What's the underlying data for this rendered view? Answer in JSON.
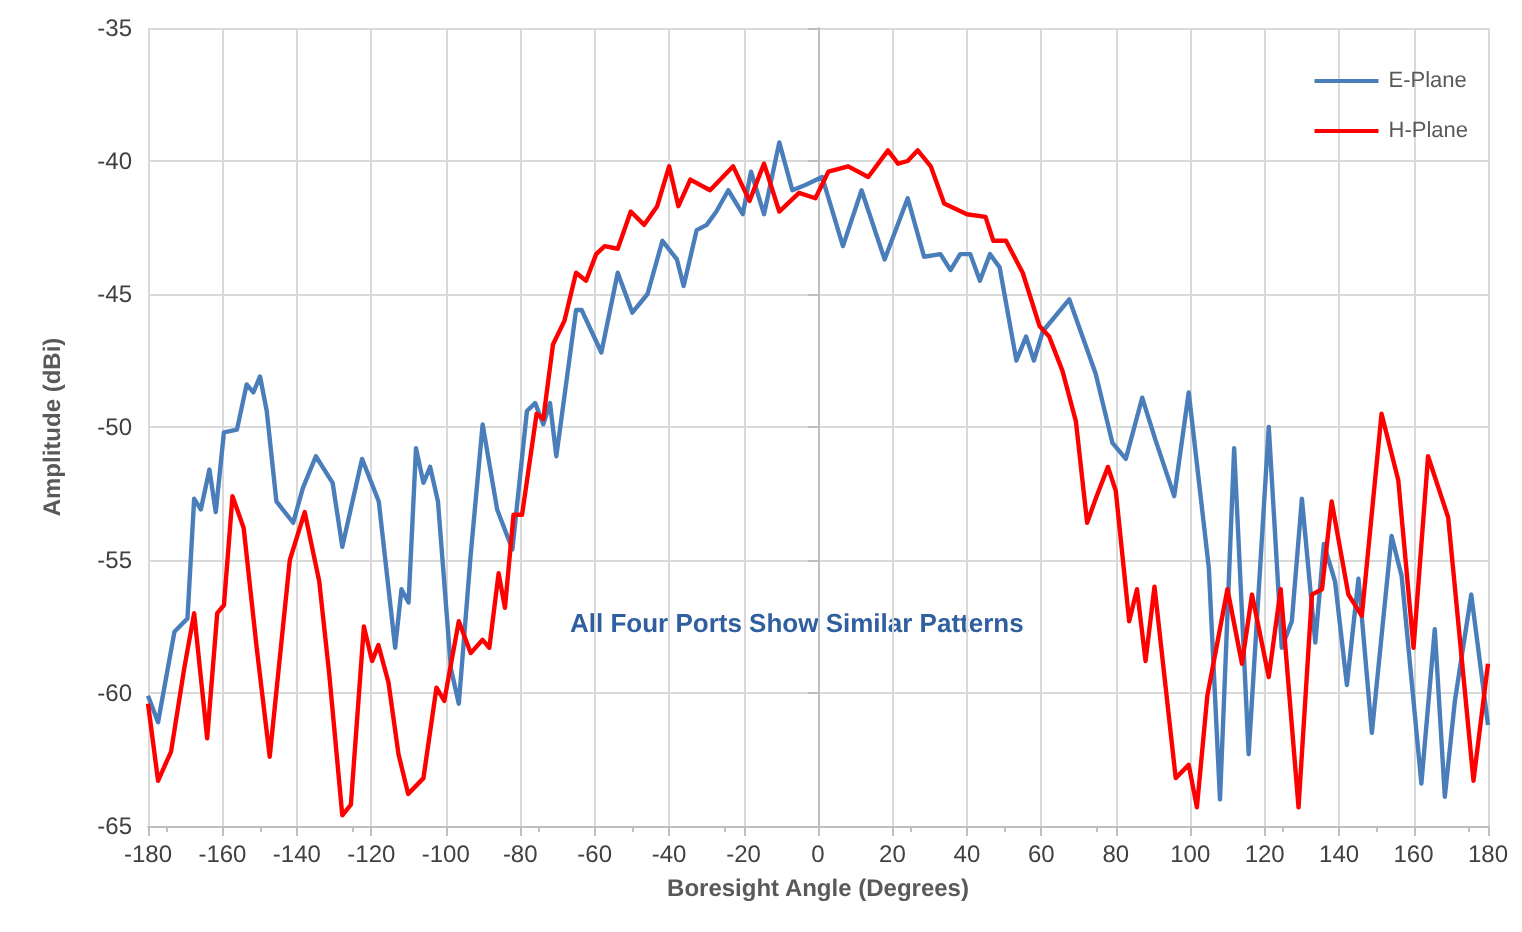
{
  "chart_data": {
    "type": "line",
    "xlabel": "Boresight Angle (Degrees)",
    "ylabel": "Amplitude (dBi)",
    "annotations": [
      "All Four Ports Show Similar Patterns"
    ],
    "xlim": [
      -180,
      180
    ],
    "xticks": [
      -180,
      -160,
      -140,
      -120,
      -100,
      -80,
      -60,
      -40,
      -20,
      0,
      20,
      40,
      60,
      80,
      100,
      120,
      140,
      160,
      180
    ],
    "ylim": [
      -65,
      -35
    ],
    "yticks": [
      -65,
      -60,
      -55,
      -50,
      -45,
      -40,
      -35
    ],
    "grid": true,
    "legend": "top right",
    "marker": "none",
    "line_style": "solid",
    "series": [
      {
        "name": "E-Plane",
        "color": "#4a7ebb",
        "x": [
          -180,
          -177.3,
          -172.9,
          -169.4,
          -167.6,
          -165.8,
          -163.5,
          -161.8,
          -159.6,
          -156.1,
          -153.5,
          -151.7,
          -149.9,
          -148.1,
          -145.5,
          -141,
          -138.4,
          -134.9,
          -130.4,
          -127.8,
          -122.5,
          -118,
          -113.6,
          -111.9,
          -110,
          -108,
          -106,
          -104.2,
          -102.1,
          -98.6,
          -96.5,
          -93.3,
          -90.1,
          -86.2,
          -82.1,
          -78.2,
          -76,
          -73.8,
          -72,
          -70.3,
          -65,
          -63.5,
          -58.2,
          -53.8,
          -49.9,
          -45.8,
          -41.8,
          -37.9,
          -36.1,
          -32.6,
          -29.9,
          -27.3,
          -24.1,
          -20.2,
          -18,
          -14.5,
          -10.4,
          -6.9,
          -3.4,
          1.1,
          6.7,
          11.7,
          17.9,
          24.1,
          28.5,
          32.9,
          35.6,
          38.2,
          40.9,
          43.5,
          46.2,
          48.8,
          53.3,
          55.9,
          58,
          60.4,
          67.5,
          74.6,
          79.1,
          82.7,
          87.1,
          90.7,
          95.7,
          99.6,
          105,
          108,
          111.8,
          115.7,
          121.1,
          124.6,
          127.3,
          130,
          133.6,
          135.9,
          138.9,
          142.1,
          145.2,
          148.8,
          154.1,
          156.8,
          162.1,
          165.7,
          168.4,
          171.1,
          175.5,
          180
        ],
        "values": [
          -60.1,
          -61.1,
          -57.7,
          -57.2,
          -52.7,
          -53.1,
          -51.6,
          -53.2,
          -50.2,
          -50.1,
          -48.4,
          -48.7,
          -48.1,
          -49.4,
          -52.8,
          -53.6,
          -52.3,
          -51.1,
          -52.1,
          -54.5,
          -51.2,
          -52.8,
          -58.3,
          -56.1,
          -56.6,
          -50.8,
          -52.1,
          -51.5,
          -52.8,
          -59.1,
          -60.4,
          -54.8,
          -49.9,
          -53.1,
          -54.6,
          -49.4,
          -49.1,
          -49.9,
          -49.1,
          -51.1,
          -45.6,
          -45.6,
          -47.2,
          -44.2,
          -45.7,
          -45,
          -43,
          -43.7,
          -44.7,
          -42.6,
          -42.4,
          -41.9,
          -41.1,
          -42,
          -40.4,
          -42,
          -39.3,
          -41.1,
          -40.9,
          -40.6,
          -43.2,
          -41.1,
          -43.7,
          -41.4,
          -43.6,
          -43.5,
          -44.1,
          -43.5,
          -43.5,
          -44.5,
          -43.5,
          -44,
          -47.5,
          -46.6,
          -47.5,
          -46.4,
          -45.2,
          -48,
          -50.6,
          -51.2,
          -48.9,
          -50.5,
          -52.6,
          -48.7,
          -55.3,
          -64,
          -50.8,
          -62.3,
          -50,
          -58.3,
          -57.3,
          -52.7,
          -58.1,
          -54.4,
          -55.8,
          -59.7,
          -55.7,
          -61.5,
          -54.1,
          -55.6,
          -63.4,
          -57.6,
          -63.9,
          -60.3,
          -56.3,
          -61.2
        ]
      },
      {
        "name": "H-Plane",
        "color": "#ff0000",
        "x": [
          -180,
          -177.3,
          -173.8,
          -170.3,
          -167.6,
          -164.1,
          -161.4,
          -159.6,
          -157.3,
          -154.3,
          -150.8,
          -147.3,
          -141.9,
          -137.9,
          -134,
          -131.3,
          -127.8,
          -125.5,
          -122,
          -119.8,
          -118.1,
          -115.4,
          -112.7,
          -110.1,
          -106,
          -102.5,
          -100.4,
          -96.5,
          -93.3,
          -90.1,
          -88.3,
          -85.8,
          -84.1,
          -81.8,
          -79.5,
          -75.6,
          -73.8,
          -71.2,
          -68.1,
          -65,
          -62.3,
          -59.6,
          -57.3,
          -53.8,
          -50.3,
          -46.7,
          -43.2,
          -40,
          -37.5,
          -34.3,
          -29,
          -22.8,
          -18.4,
          -14.5,
          -10.4,
          -5.1,
          -0.7,
          2.8,
          8.1,
          13.5,
          18.8,
          21.5,
          24.1,
          26.8,
          30.3,
          33.9,
          40,
          45,
          47.1,
          50.5,
          55,
          59.5,
          62.1,
          65.7,
          69.3,
          72.3,
          74.6,
          77.9,
          80,
          83.6,
          85.7,
          88,
          90.4,
          96.1,
          99.6,
          101.8,
          104.6,
          110,
          113.9,
          116.6,
          121.1,
          124.3,
          129.1,
          132.7,
          135.4,
          138,
          142.5,
          146.1,
          151.4,
          155.9,
          160,
          163.9,
          169.3,
          176.1,
          180
        ],
        "values": [
          -60.4,
          -63.3,
          -62.2,
          -59.1,
          -57,
          -61.7,
          -57,
          -56.7,
          -52.6,
          -53.8,
          -58.3,
          -62.4,
          -55,
          -53.2,
          -55.8,
          -59.3,
          -64.6,
          -64.2,
          -57.5,
          -58.8,
          -58.2,
          -59.6,
          -62.3,
          -63.8,
          -63.2,
          -59.8,
          -60.3,
          -57.3,
          -58.5,
          -58,
          -58.3,
          -55.5,
          -56.8,
          -53.3,
          -53.3,
          -49.5,
          -49.7,
          -46.9,
          -46,
          -44.2,
          -44.5,
          -43.5,
          -43.2,
          -43.3,
          -41.9,
          -42.4,
          -41.7,
          -40.2,
          -41.7,
          -40.7,
          -41.1,
          -40.2,
          -41.5,
          -40.1,
          -41.9,
          -41.2,
          -41.4,
          -40.4,
          -40.2,
          -40.6,
          -39.6,
          -40.1,
          -40,
          -39.6,
          -40.2,
          -41.6,
          -42,
          -42.1,
          -43,
          -43,
          -44.2,
          -46.2,
          -46.6,
          -47.9,
          -49.8,
          -53.6,
          -52.7,
          -51.5,
          -52.4,
          -57.3,
          -56.1,
          -58.8,
          -56,
          -63.2,
          -62.7,
          -64.3,
          -60.1,
          -56.1,
          -58.9,
          -56.3,
          -59.4,
          -56.1,
          -64.3,
          -56.3,
          -56.1,
          -52.8,
          -56.3,
          -57.1,
          -49.5,
          -52,
          -58.3,
          -51.1,
          -53.4,
          -63.3,
          -58.9
        ]
      }
    ]
  }
}
